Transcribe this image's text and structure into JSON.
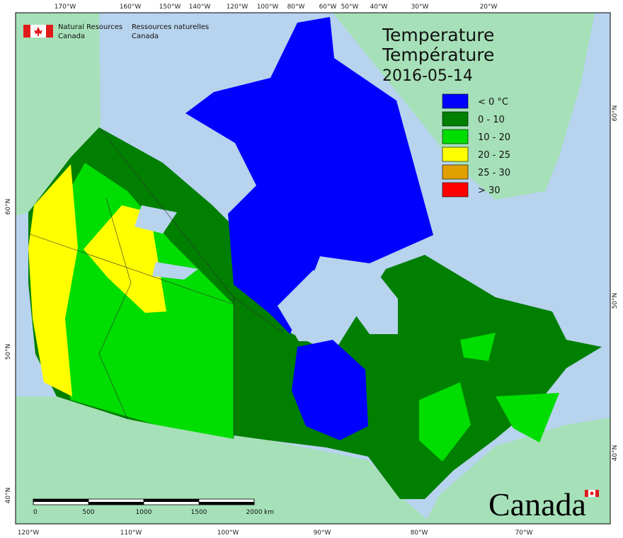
{
  "header": {
    "agency_en": [
      "Natural Resources",
      "Canada"
    ],
    "agency_fr": [
      "Ressources naturelles",
      "Canada"
    ]
  },
  "title": {
    "lines": [
      "Temperature",
      "Température"
    ],
    "date": "2016-05-14"
  },
  "legend": [
    {
      "label": "< 0 °C",
      "color": "#0000ff"
    },
    {
      "label": "0 - 10",
      "color": "#007f00"
    },
    {
      "label": "10 - 20",
      "color": "#00dd00"
    },
    {
      "label": "20 - 25",
      "color": "#ffff00"
    },
    {
      "label": "25 - 30",
      "color": "#e0a000"
    },
    {
      "label": "> 30",
      "color": "#ff0000"
    }
  ],
  "graticule": {
    "top": [
      "170°W",
      "160°W",
      "150°W",
      "140°W",
      "120°W",
      "100°W",
      "80°W",
      "60°W",
      "50°W",
      "40°W",
      "30°W",
      "20°W"
    ],
    "bottom": [
      "120°W",
      "110°W",
      "100°W",
      "90°W",
      "80°W",
      "70°W"
    ],
    "left": [
      "60°N",
      "50°N",
      "40°N"
    ],
    "right": [
      "60°N",
      "50°N",
      "40°N"
    ]
  },
  "scale_bar": {
    "ticks": [
      0,
      500,
      1000,
      1500,
      2000
    ],
    "unit": "km"
  },
  "wordmark": "Canada"
}
